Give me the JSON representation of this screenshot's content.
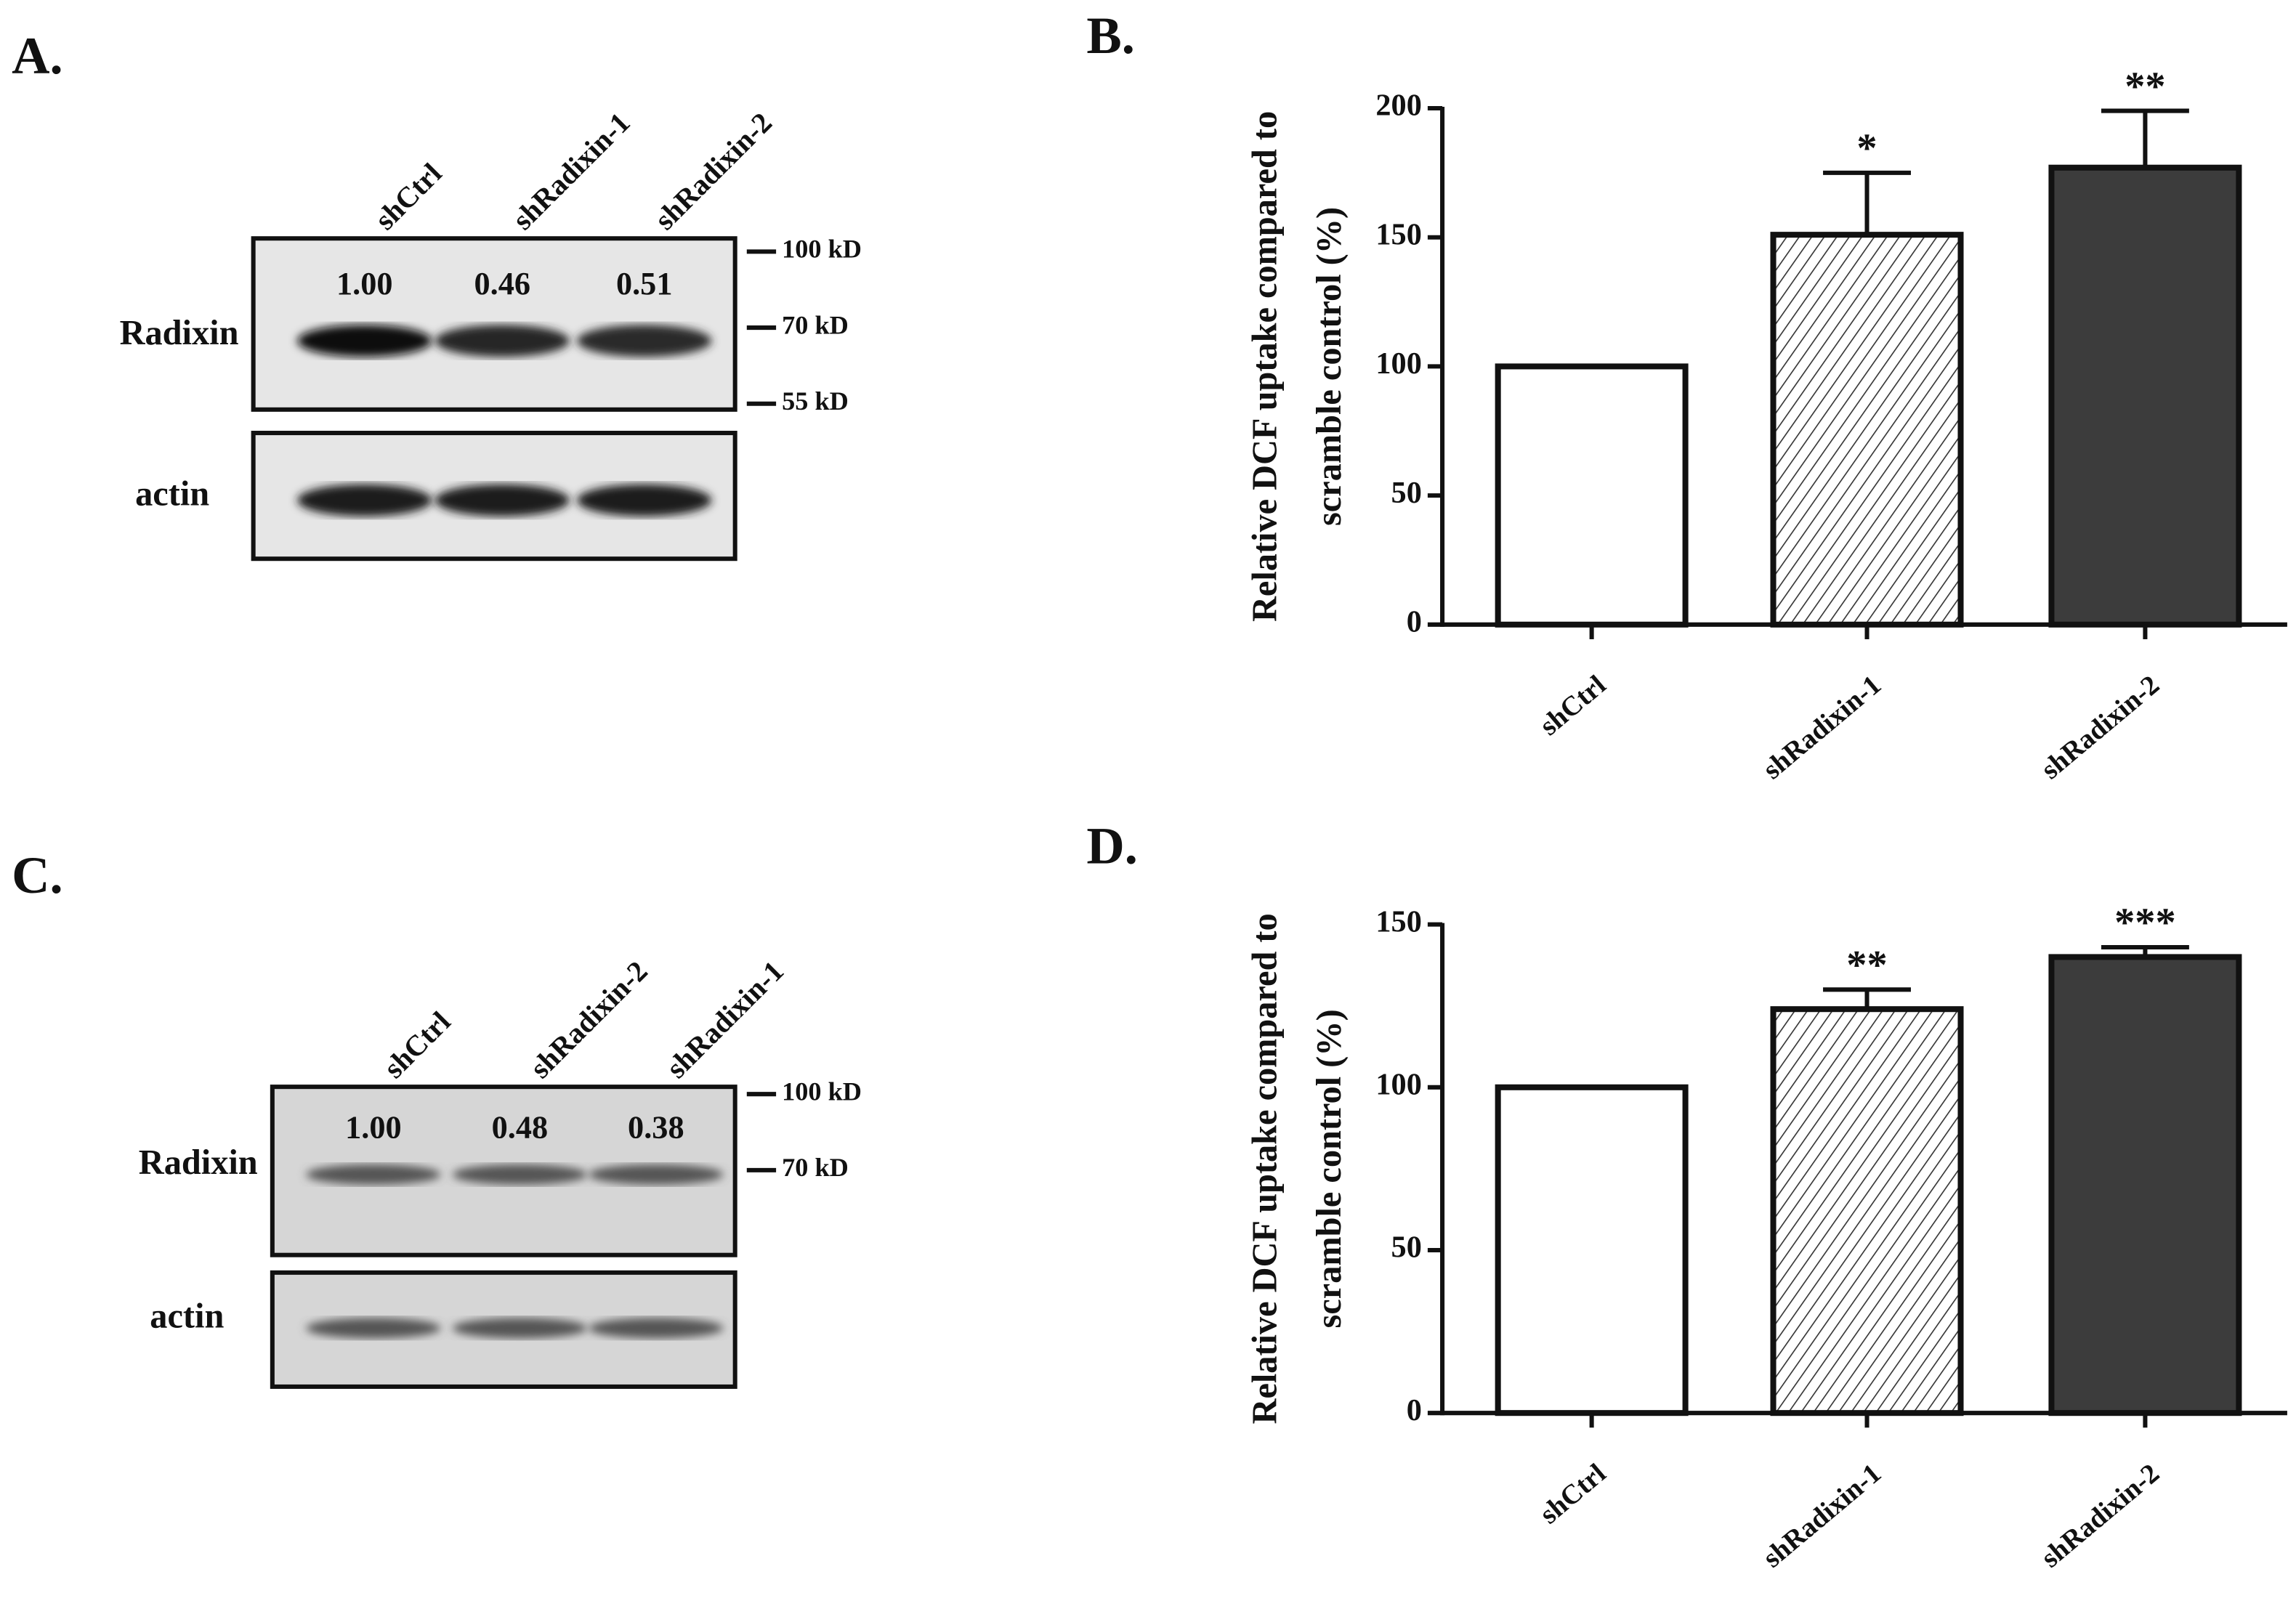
{
  "panel_labels": [
    "A.",
    "B.",
    "C.",
    "D."
  ],
  "blots": [
    {
      "lanes": [
        "shCtrl",
        "shRadixin-1",
        "shRadixin-2"
      ],
      "rows": [
        {
          "label": "Radixin",
          "values": [
            "1.00",
            "0.46",
            "0.51"
          ]
        },
        {
          "label": "actin"
        }
      ],
      "markers": [
        "100 kD",
        "70 kD",
        "55 kD"
      ]
    },
    {
      "lanes": [
        "shCtrl",
        "shRadixin-2",
        "shRadixin-1"
      ],
      "rows": [
        {
          "label": "Radixin",
          "values": [
            "1.00",
            "0.48",
            "0.38"
          ]
        },
        {
          "label": "actin"
        }
      ],
      "markers": [
        "100 kD",
        "70 kD"
      ]
    }
  ],
  "chart_data": [
    {
      "type": "bar",
      "ylabel": [
        "Relative DCF uptake compared to",
        "scramble control (%)"
      ],
      "categories": [
        "shCtrl",
        "shRadixin-1",
        "shRadixin-2"
      ],
      "values": [
        100,
        151,
        177
      ],
      "errors": [
        0,
        24,
        22
      ],
      "annotations": [
        null,
        "*",
        "**"
      ],
      "colors": [
        "#ffffff",
        "#ffffff",
        "#3c3c3c"
      ],
      "hatch": [
        false,
        true,
        false
      ],
      "ylim": [
        0,
        200
      ],
      "yticks": [
        0,
        50,
        100,
        150,
        200
      ]
    },
    {
      "type": "bar",
      "ylabel": [
        "Relative DCF uptake compared to",
        "scramble control (%)"
      ],
      "categories": [
        "shCtrl",
        "shRadixin-1",
        "shRadixin-2"
      ],
      "values": [
        100,
        124,
        140
      ],
      "errors": [
        0,
        6,
        3
      ],
      "annotations": [
        null,
        "**",
        "***"
      ],
      "colors": [
        "#ffffff",
        "#ffffff",
        "#3c3c3c"
      ],
      "hatch": [
        false,
        true,
        false
      ],
      "ylim": [
        0,
        150
      ],
      "yticks": [
        0,
        50,
        100,
        150
      ]
    }
  ]
}
